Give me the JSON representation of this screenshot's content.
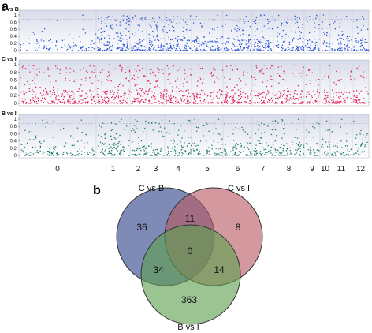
{
  "panel_a_letter": "a",
  "panel_b_letter": "b",
  "colors": {
    "c_vs_b": "#2b55d6",
    "c_vs_i": "#e0245a",
    "b_vs_i": "#1f7a62",
    "venn_c_vs_b": "#5b6aa3",
    "venn_c_vs_i": "#b85a62",
    "venn_b_vs_i": "#5e9f4f"
  },
  "chart_data": [
    {
      "type": "scatter",
      "title": "",
      "xlabel": "",
      "ylabel": "",
      "ylim": [
        0,
        1
      ],
      "y_ticks": [
        "0",
        "0.2",
        "0.4",
        "0.6",
        "0.8",
        "1"
      ],
      "x_categories": [
        "0",
        "1",
        "2",
        "3",
        "4",
        "5",
        "6",
        "7",
        "8",
        "9",
        "10",
        "11",
        "12"
      ],
      "grid": true,
      "series": [
        {
          "name": "C vs B",
          "density": [
            0.3,
            1.05,
            1.0,
            1.1,
            1.0,
            0.75,
            0.95,
            1.05,
            0.95,
            0.85,
            0.8,
            0.75,
            0.8
          ]
        },
        {
          "name": "C vs I",
          "density": [
            0.9,
            1.0,
            1.0,
            1.05,
            1.0,
            0.85,
            0.95,
            1.0,
            0.95,
            0.85,
            0.85,
            0.8,
            0.85
          ]
        },
        {
          "name": "B vs I",
          "density": [
            0.45,
            0.7,
            0.75,
            0.75,
            0.7,
            0.6,
            0.7,
            0.7,
            0.7,
            0.6,
            0.6,
            0.55,
            0.6
          ]
        }
      ]
    },
    {
      "type": "venn",
      "sets": [
        "C vs B",
        "C vs I",
        "B vs I"
      ],
      "counts": {
        "c_vs_b_only": "36",
        "c_vs_i_only": "8",
        "b_vs_i_only": "363",
        "c_vs_b_and_c_vs_i": "11",
        "c_vs_b_and_b_vs_i": "34",
        "c_vs_i_and_b_vs_i": "14",
        "all_three": "0"
      }
    }
  ]
}
